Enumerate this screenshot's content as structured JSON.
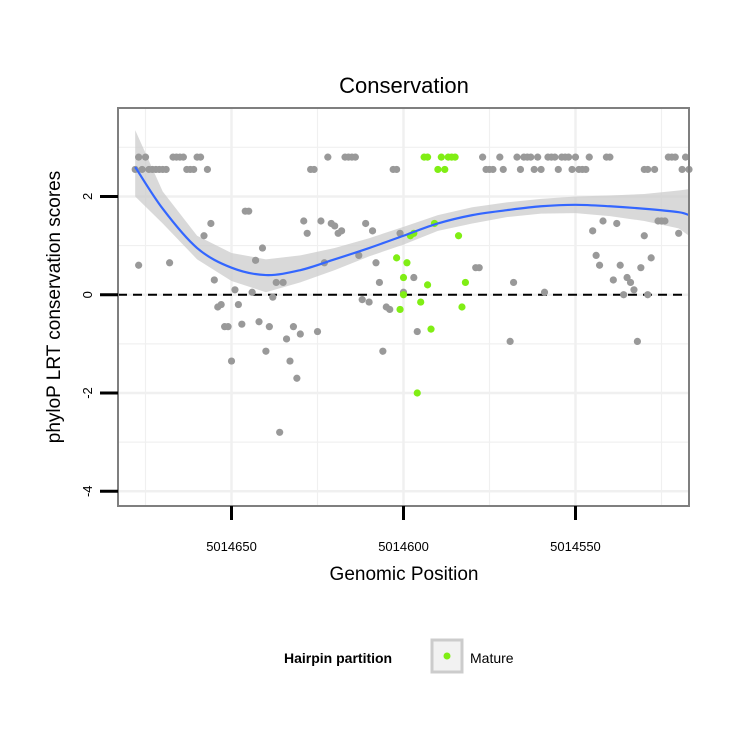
{
  "chart_data": {
    "type": "scatter",
    "title": "Conservation",
    "xlabel": "Genomic Position",
    "ylabel": "phyloP LRT conservation scores",
    "x_reversed": true,
    "xlim": [
      5014683,
      5014517
    ],
    "ylim": [
      -4.3,
      3.8
    ],
    "x_ticks": [
      5014650,
      5014600,
      5014550
    ],
    "x_tick_labels": [
      "5014650",
      "5014600",
      "5014550"
    ],
    "y_ticks": [
      -4,
      -2,
      0,
      2
    ],
    "y_tick_labels": [
      "-4",
      "-2",
      "0",
      "2"
    ],
    "grid": true,
    "reference_line": {
      "y": 0,
      "style": "dashed"
    },
    "legend": {
      "title": "Hairpin partition",
      "placement": "bottom",
      "entries": [
        "Mature"
      ]
    },
    "colors": {
      "other": "#999999",
      "mature": "#80ee14",
      "smooth_line": "#3366ff",
      "ribbon": "#cccccc"
    },
    "series": [
      {
        "partition": "other",
        "points": [
          [
            5014678,
            2.55
          ],
          [
            5014677,
            2.8
          ],
          [
            5014676,
            2.55
          ],
          [
            5014675,
            2.8
          ],
          [
            5014674,
            2.55
          ],
          [
            5014673,
            2.55
          ],
          [
            5014672,
            2.55
          ],
          [
            5014671,
            2.55
          ],
          [
            5014670,
            2.55
          ],
          [
            5014669,
            2.55
          ],
          [
            5014667,
            2.8
          ],
          [
            5014666,
            2.8
          ],
          [
            5014665,
            2.8
          ],
          [
            5014664,
            2.8
          ],
          [
            5014663,
            2.55
          ],
          [
            5014662,
            2.55
          ],
          [
            5014661,
            2.55
          ],
          [
            5014660,
            2.8
          ],
          [
            5014659,
            2.8
          ],
          [
            5014657,
            2.55
          ],
          [
            5014677,
            0.6
          ],
          [
            5014668,
            0.65
          ],
          [
            5014658,
            1.2
          ],
          [
            5014656,
            1.45
          ],
          [
            5014655,
            0.3
          ],
          [
            5014654,
            -0.25
          ],
          [
            5014653,
            -0.2
          ],
          [
            5014652,
            -0.65
          ],
          [
            5014651,
            -0.65
          ],
          [
            5014650,
            -1.35
          ],
          [
            5014649,
            0.1
          ],
          [
            5014648,
            -0.2
          ],
          [
            5014647,
            -0.6
          ],
          [
            5014646,
            1.7
          ],
          [
            5014645,
            1.7
          ],
          [
            5014644,
            0.05
          ],
          [
            5014643,
            0.7
          ],
          [
            5014642,
            -0.55
          ],
          [
            5014641,
            0.95
          ],
          [
            5014640,
            -1.15
          ],
          [
            5014639,
            -0.65
          ],
          [
            5014638,
            -0.05
          ],
          [
            5014637,
            0.25
          ],
          [
            5014636,
            -2.8
          ],
          [
            5014635,
            0.25
          ],
          [
            5014634,
            -0.9
          ],
          [
            5014633,
            -1.35
          ],
          [
            5014632,
            -0.65
          ],
          [
            5014631,
            -1.7
          ],
          [
            5014630,
            -0.8
          ],
          [
            5014629,
            1.5
          ],
          [
            5014628,
            1.25
          ],
          [
            5014627,
            2.55
          ],
          [
            5014626,
            2.55
          ],
          [
            5014625,
            -0.75
          ],
          [
            5014624,
            1.5
          ],
          [
            5014623,
            0.65
          ],
          [
            5014622,
            2.8
          ],
          [
            5014621,
            1.45
          ],
          [
            5014620,
            1.4
          ],
          [
            5014619,
            1.25
          ],
          [
            5014618,
            1.3
          ],
          [
            5014617,
            2.8
          ],
          [
            5014616,
            2.8
          ],
          [
            5014615,
            2.8
          ],
          [
            5014614,
            2.8
          ],
          [
            5014613,
            0.8
          ],
          [
            5014612,
            -0.1
          ],
          [
            5014611,
            1.45
          ],
          [
            5014610,
            -0.15
          ],
          [
            5014609,
            1.3
          ],
          [
            5014608,
            0.65
          ],
          [
            5014607,
            0.25
          ],
          [
            5014606,
            -1.15
          ],
          [
            5014605,
            -0.25
          ],
          [
            5014604,
            -0.3
          ],
          [
            5014603,
            2.55
          ],
          [
            5014602,
            2.55
          ],
          [
            5014601,
            1.25
          ],
          [
            5014600,
            0.05
          ],
          [
            5014579,
            0.55
          ],
          [
            5014578,
            0.55
          ],
          [
            5014577,
            2.8
          ],
          [
            5014576,
            2.55
          ],
          [
            5014575,
            2.55
          ],
          [
            5014574,
            2.55
          ],
          [
            5014572,
            2.8
          ],
          [
            5014571,
            2.55
          ],
          [
            5014569,
            -0.95
          ],
          [
            5014568,
            0.25
          ],
          [
            5014567,
            2.8
          ],
          [
            5014566,
            2.55
          ],
          [
            5014565,
            2.8
          ],
          [
            5014564,
            2.8
          ],
          [
            5014563,
            2.8
          ],
          [
            5014562,
            2.55
          ],
          [
            5014561,
            2.8
          ],
          [
            5014560,
            2.55
          ],
          [
            5014559,
            0.05
          ],
          [
            5014558,
            2.8
          ],
          [
            5014557,
            2.8
          ],
          [
            5014556,
            2.8
          ],
          [
            5014555,
            2.55
          ],
          [
            5014554,
            2.8
          ],
          [
            5014553,
            2.8
          ],
          [
            5014552,
            2.8
          ],
          [
            5014551,
            2.55
          ],
          [
            5014550,
            2.8
          ],
          [
            5014549,
            2.55
          ],
          [
            5014548,
            2.55
          ],
          [
            5014547,
            2.55
          ],
          [
            5014546,
            2.8
          ],
          [
            5014545,
            1.3
          ],
          [
            5014544,
            0.8
          ],
          [
            5014543,
            0.6
          ],
          [
            5014542,
            1.5
          ],
          [
            5014541,
            2.8
          ],
          [
            5014540,
            2.8
          ],
          [
            5014539,
            0.3
          ],
          [
            5014538,
            1.45
          ],
          [
            5014537,
            0.6
          ],
          [
            5014536,
            0.0
          ],
          [
            5014535,
            0.35
          ],
          [
            5014534,
            0.25
          ],
          [
            5014533,
            0.1
          ],
          [
            5014532,
            -0.95
          ],
          [
            5014531,
            0.55
          ],
          [
            5014530,
            1.2
          ],
          [
            5014529,
            0.0
          ],
          [
            5014528,
            0.75
          ],
          [
            5014527,
            2.55
          ],
          [
            5014526,
            1.5
          ],
          [
            5014525,
            1.5
          ],
          [
            5014524,
            1.5
          ],
          [
            5014523,
            2.8
          ],
          [
            5014522,
            2.8
          ],
          [
            5014521,
            2.8
          ],
          [
            5014520,
            1.25
          ],
          [
            5014519,
            2.55
          ],
          [
            5014518,
            2.8
          ],
          [
            5014517,
            2.55
          ],
          [
            5014530,
            2.55
          ],
          [
            5014529,
            2.55
          ],
          [
            5014597,
            0.35
          ],
          [
            5014596,
            -0.75
          ]
        ]
      },
      {
        "partition": "Mature",
        "points": [
          [
            5014602,
            0.75
          ],
          [
            5014601,
            -0.3
          ],
          [
            5014600,
            0.0
          ],
          [
            5014600,
            0.35
          ],
          [
            5014599,
            0.65
          ],
          [
            5014598,
            1.2
          ],
          [
            5014597,
            1.25
          ],
          [
            5014596,
            -2.0
          ],
          [
            5014595,
            -0.15
          ],
          [
            5014594,
            2.8
          ],
          [
            5014593,
            2.8
          ],
          [
            5014593,
            0.2
          ],
          [
            5014592,
            -0.7
          ],
          [
            5014591,
            1.45
          ],
          [
            5014590,
            2.55
          ],
          [
            5014589,
            2.8
          ],
          [
            5014588,
            2.55
          ],
          [
            5014587,
            2.8
          ],
          [
            5014586,
            2.8
          ],
          [
            5014585,
            2.8
          ],
          [
            5014584,
            1.2
          ],
          [
            5014583,
            -0.25
          ],
          [
            5014582,
            0.25
          ]
        ]
      }
    ],
    "smooth": {
      "method": "loess",
      "points": [
        [
          5014678,
          2.6
        ],
        [
          5014670,
          1.75
        ],
        [
          5014660,
          0.95
        ],
        [
          5014650,
          0.55
        ],
        [
          5014640,
          0.4
        ],
        [
          5014630,
          0.5
        ],
        [
          5014620,
          0.72
        ],
        [
          5014610,
          0.95
        ],
        [
          5014600,
          1.2
        ],
        [
          5014590,
          1.45
        ],
        [
          5014580,
          1.62
        ],
        [
          5014570,
          1.72
        ],
        [
          5014560,
          1.8
        ],
        [
          5014550,
          1.83
        ],
        [
          5014540,
          1.8
        ],
        [
          5014530,
          1.75
        ],
        [
          5014520,
          1.68
        ],
        [
          5014517,
          1.62
        ]
      ],
      "ci_lower": [
        [
          5014678,
          2.0
        ],
        [
          5014670,
          1.45
        ],
        [
          5014660,
          0.72
        ],
        [
          5014650,
          0.28
        ],
        [
          5014640,
          0.05
        ],
        [
          5014630,
          0.25
        ],
        [
          5014620,
          0.5
        ],
        [
          5014610,
          0.78
        ],
        [
          5014600,
          1.02
        ],
        [
          5014590,
          1.3
        ],
        [
          5014580,
          1.45
        ],
        [
          5014570,
          1.58
        ],
        [
          5014560,
          1.65
        ],
        [
          5014550,
          1.66
        ],
        [
          5014540,
          1.6
        ],
        [
          5014530,
          1.5
        ],
        [
          5014520,
          1.35
        ],
        [
          5014517,
          1.2
        ]
      ],
      "ci_upper": [
        [
          5014678,
          3.35
        ],
        [
          5014670,
          2.1
        ],
        [
          5014660,
          1.2
        ],
        [
          5014650,
          0.85
        ],
        [
          5014640,
          0.72
        ],
        [
          5014630,
          0.8
        ],
        [
          5014620,
          0.95
        ],
        [
          5014610,
          1.15
        ],
        [
          5014600,
          1.38
        ],
        [
          5014590,
          1.62
        ],
        [
          5014580,
          1.78
        ],
        [
          5014570,
          1.88
        ],
        [
          5014560,
          1.95
        ],
        [
          5014550,
          2.0
        ],
        [
          5014540,
          2.02
        ],
        [
          5014530,
          2.05
        ],
        [
          5014520,
          2.12
        ],
        [
          5014517,
          2.15
        ]
      ]
    }
  }
}
